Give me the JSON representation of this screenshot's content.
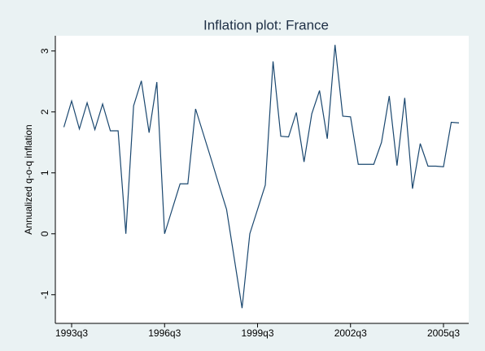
{
  "chart_data": {
    "type": "line",
    "title": "Inflation plot: France",
    "y_label": "Annualized q-o-q inflation",
    "categories": [
      null,
      "1993q3",
      null,
      null,
      null,
      null,
      null,
      null,
      null,
      null,
      null,
      null,
      null,
      "1996q3",
      null,
      null,
      null,
      null,
      null,
      null,
      null,
      null,
      null,
      null,
      null,
      "1999q3",
      null,
      null,
      null,
      null,
      null,
      null,
      null,
      null,
      null,
      null,
      null,
      "2002q3",
      null,
      null,
      null,
      null,
      null,
      null,
      null,
      null,
      null,
      null,
      null,
      "2005q3",
      null,
      null
    ],
    "values": [
      1.75,
      2.18,
      1.72,
      2.15,
      1.71,
      2.13,
      1.69,
      1.69,
      0.0,
      2.1,
      2.51,
      1.66,
      2.49,
      0.0,
      0.41,
      0.82,
      0.82,
      2.05,
      1.64,
      1.23,
      0.81,
      0.4,
      -0.41,
      -1.22,
      0.0,
      0.4,
      0.8,
      2.83,
      1.6,
      1.59,
      1.99,
      1.18,
      1.97,
      2.35,
      1.56,
      3.1,
      1.93,
      1.92,
      1.14,
      1.14,
      1.14,
      1.5,
      2.26,
      1.12,
      2.23,
      0.74,
      1.48,
      1.11,
      1.11,
      1.1,
      1.83,
      1.82
    ],
    "color": "#1a476f",
    "ylim": [
      -1.47,
      3.25
    ],
    "yticks": [
      -1,
      0,
      1,
      2,
      3
    ],
    "grid": false
  }
}
